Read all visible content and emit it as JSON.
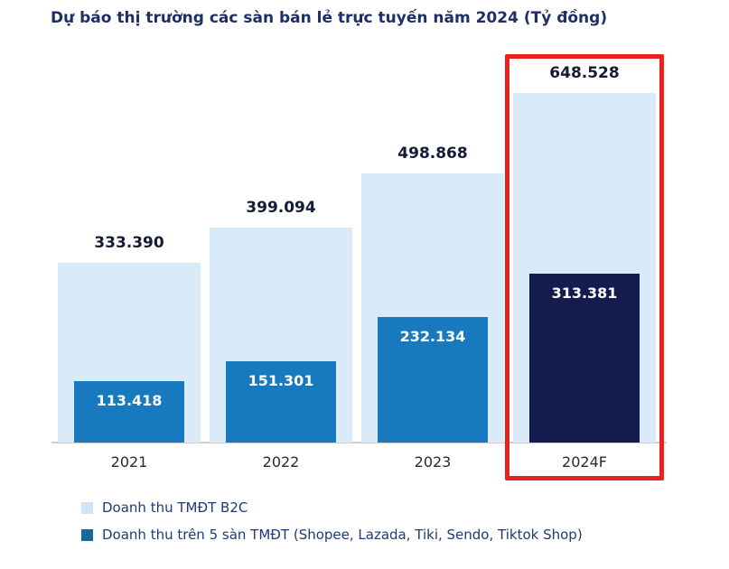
{
  "title": "Dự báo thị trường các sàn bán lẻ trực tuyến năm 2024 (Tỷ đồng)",
  "chart_data": {
    "type": "bar",
    "title": "Dự báo thị trường các sàn bán lẻ trực tuyến năm 2024 (Tỷ đồng)",
    "unit": "Tỷ đồng",
    "categories": [
      "2021",
      "2022",
      "2023",
      "2024F"
    ],
    "series": [
      {
        "name": "Doanh thu TMĐT B2C",
        "values": [
          333390,
          399094,
          498868,
          648528
        ],
        "labels": [
          "333.390",
          "399.094",
          "498.868",
          "648.528"
        ]
      },
      {
        "name": "Doanh thu trên 5 sàn TMĐT (Shopee, Lazada, Tiki, Sendo, Tiktok Shop)",
        "values": [
          113418,
          151301,
          232134,
          313381
        ],
        "labels": [
          "113.418",
          "151.301",
          "232.134",
          "313.381"
        ]
      }
    ],
    "xlabel": "",
    "ylabel": "",
    "ylim": [
      0,
      650000
    ],
    "grid": false,
    "y_axis_visible": false,
    "legend_position": "bottom-left",
    "highlight_category": "2024F",
    "colors": {
      "b2c_bar": "#d9eaf8",
      "platform_bar": "#187abe",
      "platform_bar_highlight": "#141b4d",
      "highlight_border": "#e8231d",
      "title_text": "#1e2f66",
      "value_label_text": "#141b35",
      "inner_label_text": "#ffffff"
    }
  },
  "legend": [
    {
      "label": "Doanh thu TMĐT B2C",
      "swatch_color": "#cfe4f6"
    },
    {
      "label": "Doanh thu trên 5 sàn TMĐT (Shopee, Lazada, Tiki, Sendo, Tiktok Shop)",
      "swatch_color": "#176a97"
    }
  ]
}
